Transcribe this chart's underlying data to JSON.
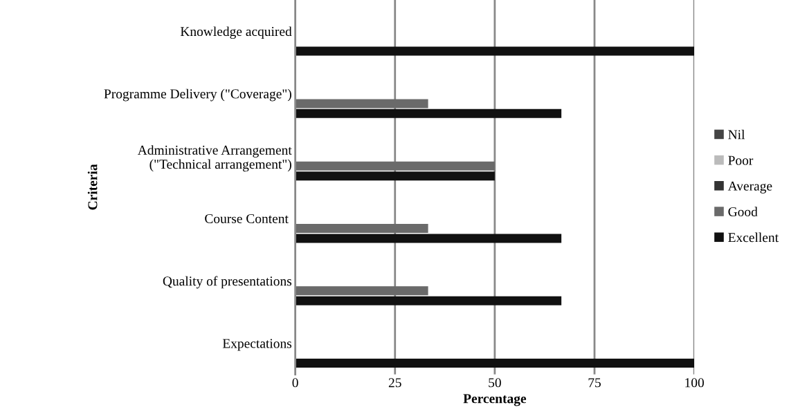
{
  "chart_data": {
    "type": "bar",
    "orientation": "horizontal",
    "xlabel": "Percentage",
    "ylabel": "Criteria",
    "categories": [
      "Knowledge acquired",
      "Programme Delivery (\"Coverage\")",
      "Administrative Arrangement\n(\"Technical arrangement\")",
      "Course Content ",
      "Quality of presentations",
      "Expectations"
    ],
    "series": [
      {
        "name": "Excellent",
        "color": "#111111",
        "values": [
          100,
          66.7,
          50,
          66.7,
          66.7,
          100
        ]
      },
      {
        "name": "Good",
        "color": "#6a6a6a",
        "values": [
          0,
          33.3,
          50,
          33.3,
          33.3,
          0
        ]
      },
      {
        "name": "Average",
        "color": "#333333",
        "values": [
          0,
          0,
          0,
          0,
          0,
          0
        ]
      },
      {
        "name": "Poor",
        "color": "#bbbbbb",
        "values": [
          0,
          0,
          0,
          0,
          0,
          0
        ]
      },
      {
        "name": "Nil",
        "color": "#444444",
        "values": [
          0,
          0,
          0,
          0,
          0,
          0
        ]
      }
    ],
    "xlim": [
      0,
      100
    ],
    "xticks": [
      0,
      25,
      50,
      75,
      100
    ],
    "grid": "x",
    "legend": "right"
  }
}
